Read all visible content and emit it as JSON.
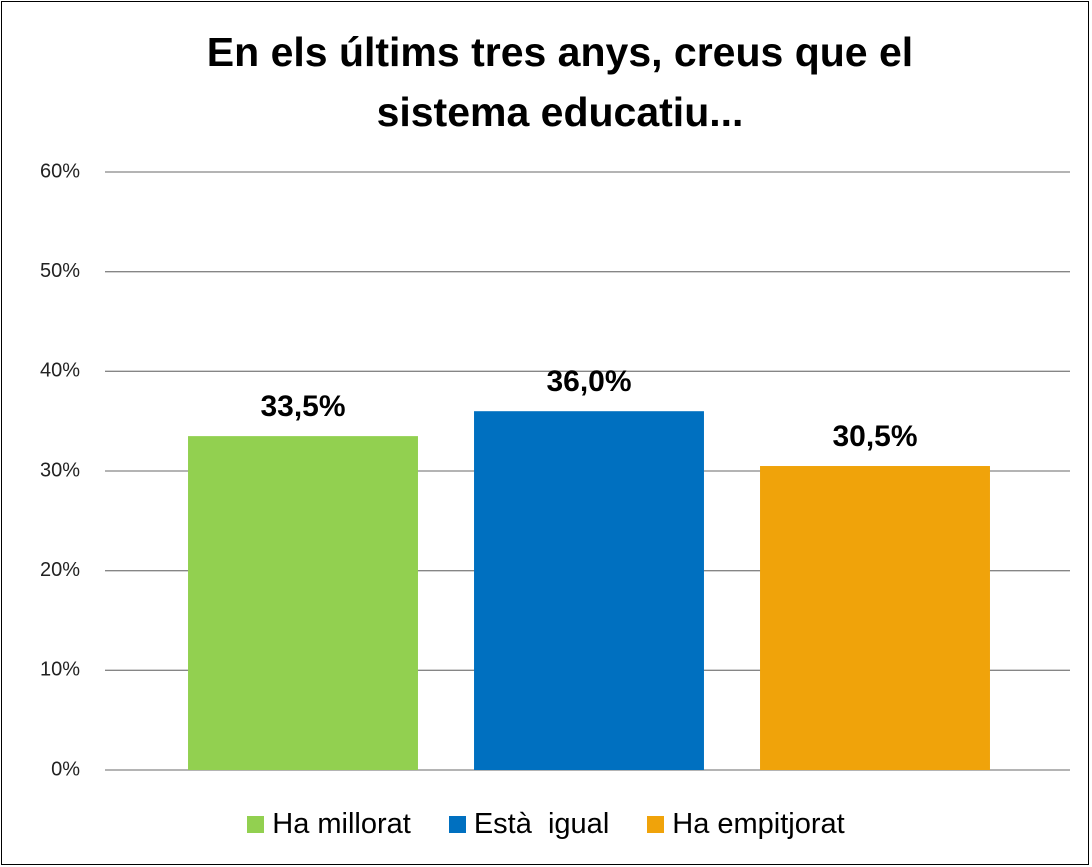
{
  "chart_data": {
    "type": "bar",
    "title": "En els últims tres anys, creus que el sistema educatiu...",
    "categories": [
      "Ha millorat",
      "Està  igual",
      "Ha empitjorat"
    ],
    "values": [
      33.5,
      36.0,
      30.5
    ],
    "value_labels": [
      "33,5%",
      "36,0%",
      "30,5%"
    ],
    "colors": [
      "#92d050",
      "#0070c0",
      "#f0a30a"
    ],
    "ylim": [
      0,
      60
    ],
    "yticks": [
      {
        "value": 0,
        "label": "0%"
      },
      {
        "value": 10,
        "label": "10%"
      },
      {
        "value": 20,
        "label": "20%"
      },
      {
        "value": 30,
        "label": "30%"
      },
      {
        "value": 40,
        "label": "40%"
      },
      {
        "value": 50,
        "label": "50%"
      },
      {
        "value": 60,
        "label": "60%"
      }
    ],
    "grid": true,
    "legend": "bottom"
  }
}
